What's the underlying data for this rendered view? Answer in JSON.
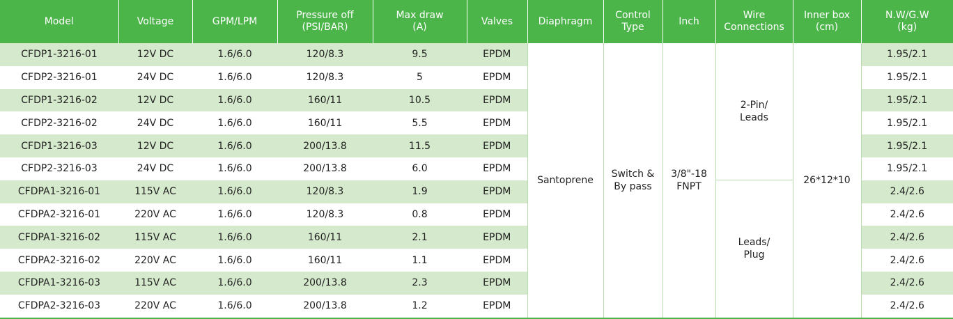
{
  "table": {
    "header": [
      "Model",
      "Voltage",
      "GPM/LPM",
      "Pressure off\n(PSI/BAR)",
      "Max draw\n(A)",
      "Valves",
      "Diaphragm",
      "Control\nType",
      "Inch",
      "Wire\nConnections",
      "Inner box\n(cm)",
      "N.W/G.W\n(kg)"
    ],
    "rows": [
      [
        "CFDP1-3216-01",
        "12V DC",
        "1.6/6.0",
        "120/8.3",
        "9.5",
        "EPDM"
      ],
      [
        "CFDP2-3216-01",
        "24V DC",
        "1.6/6.0",
        "120/8.3",
        "5",
        "EPDM"
      ],
      [
        "CFDP1-3216-02",
        "12V DC",
        "1.6/6.0",
        "160/11",
        "10.5",
        "EPDM"
      ],
      [
        "CFDP2-3216-02",
        "24V DC",
        "1.6/6.0",
        "160/11",
        "5.5",
        "EPDM"
      ],
      [
        "CFDP1-3216-03",
        "12V DC",
        "1.6/6.0",
        "200/13.8",
        "11.5",
        "EPDM"
      ],
      [
        "CFDP2-3216-03",
        "24V DC",
        "1.6/6.0",
        "200/13.8",
        "6.0",
        "EPDM"
      ],
      [
        "CFDPA1-3216-01",
        "115V AC",
        "1.6/6.0",
        "120/8.3",
        "1.9",
        "EPDM"
      ],
      [
        "CFDPA2-3216-01",
        "220V AC",
        "1.6/6.0",
        "120/8.3",
        "0.8",
        "EPDM"
      ],
      [
        "CFDPA1-3216-02",
        "115V AC",
        "1.6/6.0",
        "160/11",
        "2.1",
        "EPDM"
      ],
      [
        "CFDPA2-3216-02",
        "220V AC",
        "1.6/6.0",
        "160/11",
        "1.1",
        "EPDM"
      ],
      [
        "CFDPA1-3216-03",
        "115V AC",
        "1.6/6.0",
        "200/13.8",
        "2.3",
        "EPDM"
      ],
      [
        "CFDPA2-3216-03",
        "220V AC",
        "1.6/6.0",
        "200/13.8",
        "1.2",
        "EPDM"
      ]
    ],
    "diaphragm": "Santoprene",
    "control_type": "Switch &\nBy pass",
    "inch": "3/8\"-18\nFNPT",
    "wire_connections": [
      "2-Pin/\nLeads",
      "Leads/\nPlug"
    ],
    "inner_box": "26*12*10",
    "nw_gw": [
      "1.95/2.1",
      "1.95/2.1",
      "1.95/2.1",
      "1.95/2.1",
      "1.95/2.1",
      "1.95/2.1",
      "2.4/2.6",
      "2.4/2.6",
      "2.4/2.6",
      "2.4/2.6",
      "2.4/2.6",
      "2.4/2.6"
    ]
  }
}
